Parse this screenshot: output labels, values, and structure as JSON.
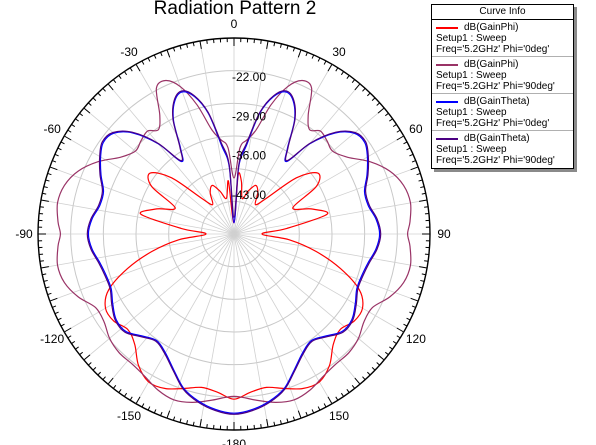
{
  "chart_data": {
    "type": "polar-line",
    "title": "Radiation Pattern 2",
    "angle_ticks": [
      0,
      30,
      60,
      90,
      120,
      150,
      -180,
      -150,
      -120,
      -90,
      -60,
      -30
    ],
    "radial_ticks": [
      -43.0,
      -36.0,
      -29.0,
      -22.0
    ],
    "radial_tick_labels": [
      "-43.00",
      "-36.00",
      "-29.00",
      "-22.00"
    ],
    "rlim": [
      -50,
      -15
    ],
    "legend_title": "Curve Info",
    "legend_placement": "top-right",
    "grid": true,
    "series": [
      {
        "name": "dB(GainPhi)",
        "setup": "Setup1 : Sweep",
        "params": "Freq='5.2GHz' Phi='0deg'",
        "color": "#ff0000",
        "theta": [
          0,
          4,
          8,
          13,
          18,
          24,
          30,
          36,
          42,
          48,
          54,
          60,
          66,
          72,
          78,
          84,
          90,
          96,
          102,
          108,
          114,
          120,
          126,
          132,
          138,
          144,
          150,
          156,
          162,
          168,
          174,
          180,
          186,
          192,
          198,
          204,
          210,
          216,
          222,
          228,
          234,
          240,
          246,
          252,
          258,
          264,
          270,
          276,
          282,
          288,
          294,
          300,
          306,
          312,
          318,
          324,
          330,
          336,
          342,
          348,
          354,
          360
        ],
        "r": [
          -48,
          -39.5,
          -40.5,
          -43.5,
          -42,
          -40.5,
          -41.5,
          -43.5,
          -41.5,
          -35,
          -31.5,
          -33,
          -38.5,
          -35.5,
          -33,
          -40.5,
          -45,
          -40,
          -35,
          -30,
          -25.5,
          -23.5,
          -23.5,
          -24.5,
          -23.5,
          -21,
          -19.5,
          -19.8,
          -21,
          -22,
          -21.6,
          -20.5,
          -21.6,
          -22,
          -21,
          -19.8,
          -19.5,
          -21,
          -23.5,
          -24.5,
          -23.5,
          -23.5,
          -25.5,
          -30,
          -35,
          -40,
          -45,
          -40.5,
          -33,
          -35.5,
          -38.5,
          -33,
          -31.5,
          -35,
          -41.5,
          -43.5,
          -41.5,
          -40.5,
          -42,
          -43.5,
          -40.5,
          -48
        ]
      },
      {
        "name": "dB(GainPhi)",
        "setup": "Setup1 : Sweep",
        "params": "Freq='5.2GHz' Phi='90deg'",
        "color": "#993366",
        "theta": [
          0,
          4,
          8,
          12,
          16,
          20,
          24,
          28,
          32,
          36,
          40,
          45,
          50,
          56,
          62,
          68,
          74,
          80,
          86,
          90,
          94,
          100,
          106,
          112,
          118,
          124,
          130,
          136,
          142,
          148,
          154,
          160,
          166,
          172,
          180,
          188,
          194,
          200,
          206,
          212,
          218,
          224,
          230,
          236,
          242,
          248,
          254,
          260,
          266,
          270,
          274,
          280,
          286,
          292,
          298,
          304,
          310,
          315,
          320,
          324,
          328,
          332,
          336,
          340,
          344,
          348,
          352,
          356,
          360
        ],
        "r": [
          -40,
          -34.5,
          -33,
          -31,
          -26,
          -22,
          -20,
          -20.5,
          -25,
          -27,
          -26,
          -26.5,
          -27,
          -25.5,
          -22.5,
          -20,
          -18.5,
          -18,
          -18.5,
          -19,
          -18.5,
          -18,
          -18.5,
          -20,
          -22,
          -22,
          -21,
          -20.5,
          -20.5,
          -20,
          -19,
          -18.5,
          -19,
          -20,
          -21,
          -20,
          -19,
          -18.5,
          -19,
          -20,
          -20.5,
          -20.5,
          -21,
          -22,
          -22,
          -20,
          -18.5,
          -18,
          -18.5,
          -19,
          -18.5,
          -18,
          -18.5,
          -20,
          -22.5,
          -25.5,
          -27,
          -26.5,
          -26,
          -27,
          -25,
          -20.5,
          -20,
          -22,
          -26,
          -31,
          -33,
          -34.5,
          -40
        ]
      },
      {
        "name": "dB(GainTheta)",
        "setup": "Setup1 : Sweep",
        "params": "Freq='5.2GHz' Phi='0deg'",
        "color": "#0000ff",
        "theta": [
          0,
          4,
          8,
          12,
          16,
          20,
          24,
          28,
          32,
          36,
          40,
          45,
          50,
          55,
          60,
          66,
          72,
          78,
          84,
          90,
          96,
          102,
          108,
          114,
          120,
          126,
          132,
          138,
          144,
          150,
          156,
          162,
          168,
          174,
          180,
          186,
          192,
          198,
          204,
          210,
          216,
          222,
          228,
          234,
          240,
          246,
          252,
          258,
          264,
          270,
          276,
          282,
          288,
          294,
          300,
          305,
          310,
          315,
          320,
          324,
          328,
          332,
          336,
          340,
          344,
          348,
          352,
          356,
          360
        ],
        "r": [
          -48,
          -38,
          -34,
          -28,
          -24.5,
          -23,
          -24,
          -27,
          -32,
          -34,
          -29,
          -24.5,
          -22,
          -21.5,
          -22.5,
          -24,
          -25.5,
          -25.5,
          -24.5,
          -24,
          -24.5,
          -25.5,
          -26,
          -26,
          -25,
          -24,
          -24,
          -25.5,
          -26.5,
          -25.5,
          -23.5,
          -21,
          -19.5,
          -18.5,
          -18,
          -18.5,
          -19.5,
          -21,
          -23.5,
          -25.5,
          -26.5,
          -25.5,
          -24,
          -24,
          -25,
          -26,
          -26,
          -25.5,
          -24.5,
          -24,
          -24.5,
          -25.5,
          -25.5,
          -24,
          -22.5,
          -21.5,
          -22,
          -24.5,
          -29,
          -34,
          -32,
          -27,
          -24,
          -23,
          -24.5,
          -28,
          -34,
          -38,
          -48
        ]
      },
      {
        "name": "dB(GainTheta)",
        "setup": "Setup1 : Sweep",
        "params": "Freq='5.2GHz' Phi='90deg'",
        "color": "#4b0082",
        "theta": [
          0,
          4,
          8,
          12,
          16,
          20,
          24,
          28,
          32,
          36,
          40,
          45,
          50,
          55,
          60,
          66,
          72,
          78,
          84,
          90,
          96,
          102,
          108,
          114,
          120,
          126,
          132,
          138,
          144,
          150,
          156,
          162,
          168,
          174,
          180,
          186,
          192,
          198,
          204,
          210,
          216,
          222,
          228,
          234,
          240,
          246,
          252,
          258,
          264,
          270,
          276,
          282,
          288,
          294,
          300,
          305,
          310,
          315,
          320,
          324,
          328,
          332,
          336,
          340,
          344,
          348,
          352,
          356,
          360
        ],
        "r": [
          -47,
          -37.5,
          -33.5,
          -27.8,
          -24.3,
          -22.8,
          -23.8,
          -26.8,
          -31.8,
          -33.8,
          -28.8,
          -24.3,
          -21.8,
          -21.3,
          -22.3,
          -23.8,
          -25.3,
          -25.3,
          -24.3,
          -23.8,
          -24.3,
          -25.3,
          -25.8,
          -25.8,
          -24.8,
          -23.8,
          -23.8,
          -25.3,
          -26.3,
          -25.3,
          -23.3,
          -20.8,
          -19.3,
          -18.3,
          -17.8,
          -18.3,
          -19.3,
          -20.8,
          -23.3,
          -25.3,
          -26.3,
          -25.3,
          -23.8,
          -23.8,
          -24.8,
          -25.8,
          -25.8,
          -25.3,
          -24.3,
          -23.8,
          -24.3,
          -25.3,
          -25.3,
          -23.8,
          -22.3,
          -21.3,
          -21.8,
          -24.3,
          -28.8,
          -33.8,
          -31.8,
          -26.8,
          -23.8,
          -22.8,
          -24.3,
          -27.8,
          -33.5,
          -37.5,
          -47
        ]
      }
    ]
  }
}
